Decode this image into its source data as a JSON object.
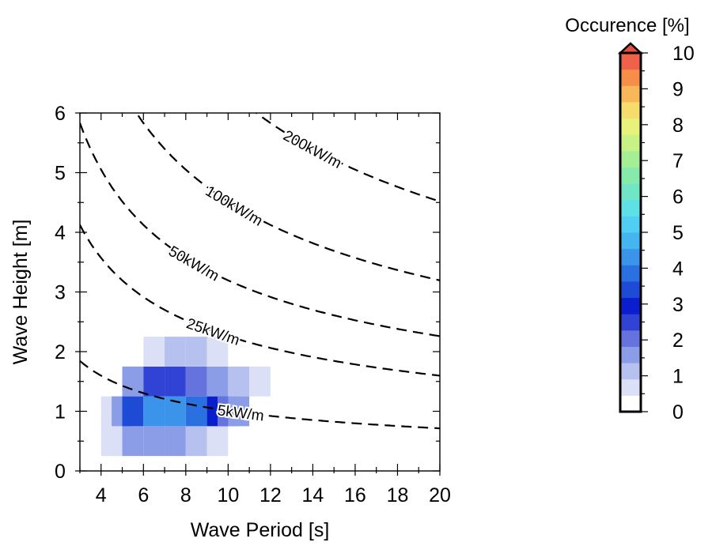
{
  "chart_data": {
    "type": "heatmap",
    "xlabel": "Wave Period [s]",
    "ylabel": "Wave Height [m]",
    "xlim": [
      3,
      20
    ],
    "ylim": [
      0,
      6
    ],
    "x_ticks": [
      "4",
      "6",
      "8",
      "10",
      "12",
      "14",
      "16",
      "18",
      "20"
    ],
    "y_ticks": [
      "0",
      "1",
      "2",
      "3",
      "4",
      "5",
      "6"
    ],
    "heatmap_cells": [
      {
        "x": 4.5,
        "y": 0.5,
        "value": 0.5
      },
      {
        "x": 5.5,
        "y": 0.5,
        "value": 1.5
      },
      {
        "x": 6.5,
        "y": 0.5,
        "value": 1.5
      },
      {
        "x": 7.5,
        "y": 0.5,
        "value": 1.5
      },
      {
        "x": 8.5,
        "y": 0.5,
        "value": 1.0
      },
      {
        "x": 9.5,
        "y": 0.5,
        "value": 0.5
      },
      {
        "x": 4.5,
        "y": 1.0,
        "value": 0.5
      },
      {
        "x": 5.0,
        "y": 1.0,
        "value": 1.5
      },
      {
        "x": 5.5,
        "y": 1.0,
        "value": 3.5
      },
      {
        "x": 6.5,
        "y": 1.0,
        "value": 4.5
      },
      {
        "x": 7.5,
        "y": 1.0,
        "value": 4.5
      },
      {
        "x": 8.5,
        "y": 1.0,
        "value": 4.0
      },
      {
        "x": 9.5,
        "y": 1.0,
        "value": 3.0
      },
      {
        "x": 10.0,
        "y": 1.0,
        "value": 2.0
      },
      {
        "x": 10.5,
        "y": 1.0,
        "value": 1.5
      },
      {
        "x": 5.5,
        "y": 1.5,
        "value": 1.5
      },
      {
        "x": 6.5,
        "y": 1.5,
        "value": 2.5
      },
      {
        "x": 7.5,
        "y": 1.5,
        "value": 2.5
      },
      {
        "x": 8.5,
        "y": 1.5,
        "value": 2.0
      },
      {
        "x": 9.5,
        "y": 1.5,
        "value": 1.5
      },
      {
        "x": 10.5,
        "y": 1.5,
        "value": 1.0
      },
      {
        "x": 11.5,
        "y": 1.5,
        "value": 0.5
      },
      {
        "x": 6.5,
        "y": 2.0,
        "value": 0.5
      },
      {
        "x": 7.5,
        "y": 2.0,
        "value": 1.0
      },
      {
        "x": 8.5,
        "y": 2.0,
        "value": 1.0
      },
      {
        "x": 9.5,
        "y": 2.0,
        "value": 0.5
      }
    ],
    "contours": [
      {
        "label": "5kW/m",
        "power_kw_per_m": 5,
        "label_x": 10.6
      },
      {
        "label": "25kW/m",
        "power_kw_per_m": 25,
        "label_x": 9.3
      },
      {
        "label": "50kW/m",
        "power_kw_per_m": 50,
        "label_x": 8.4
      },
      {
        "label": "100kW/m",
        "power_kw_per_m": 100,
        "label_x": 10.3
      },
      {
        "label": "200kW/m",
        "power_kw_per_m": 200,
        "label_x": 14.0
      }
    ],
    "colorbar": {
      "title": "Occurence [%]",
      "min": 0,
      "max": 10,
      "step": 0.5,
      "extend": "max",
      "ticks": [
        "0",
        "1",
        "2",
        "3",
        "4",
        "5",
        "6",
        "7",
        "8",
        "9",
        "10"
      ],
      "colors": [
        "#ffffff",
        "#dbe0f7",
        "#b6c1f0",
        "#8c9de8",
        "#6473de",
        "#3143d4",
        "#0a1ece",
        "#1d4bd6",
        "#2b70e0",
        "#3b94ea",
        "#45b5ef",
        "#51cff2",
        "#5fe0e6",
        "#70e6c6",
        "#86ebaa",
        "#a4ef96",
        "#c7f285",
        "#e8f17a",
        "#f6dc6c",
        "#f8b85a",
        "#f68e4a",
        "#f0614a"
      ],
      "extend_color": "#e64e45"
    }
  }
}
